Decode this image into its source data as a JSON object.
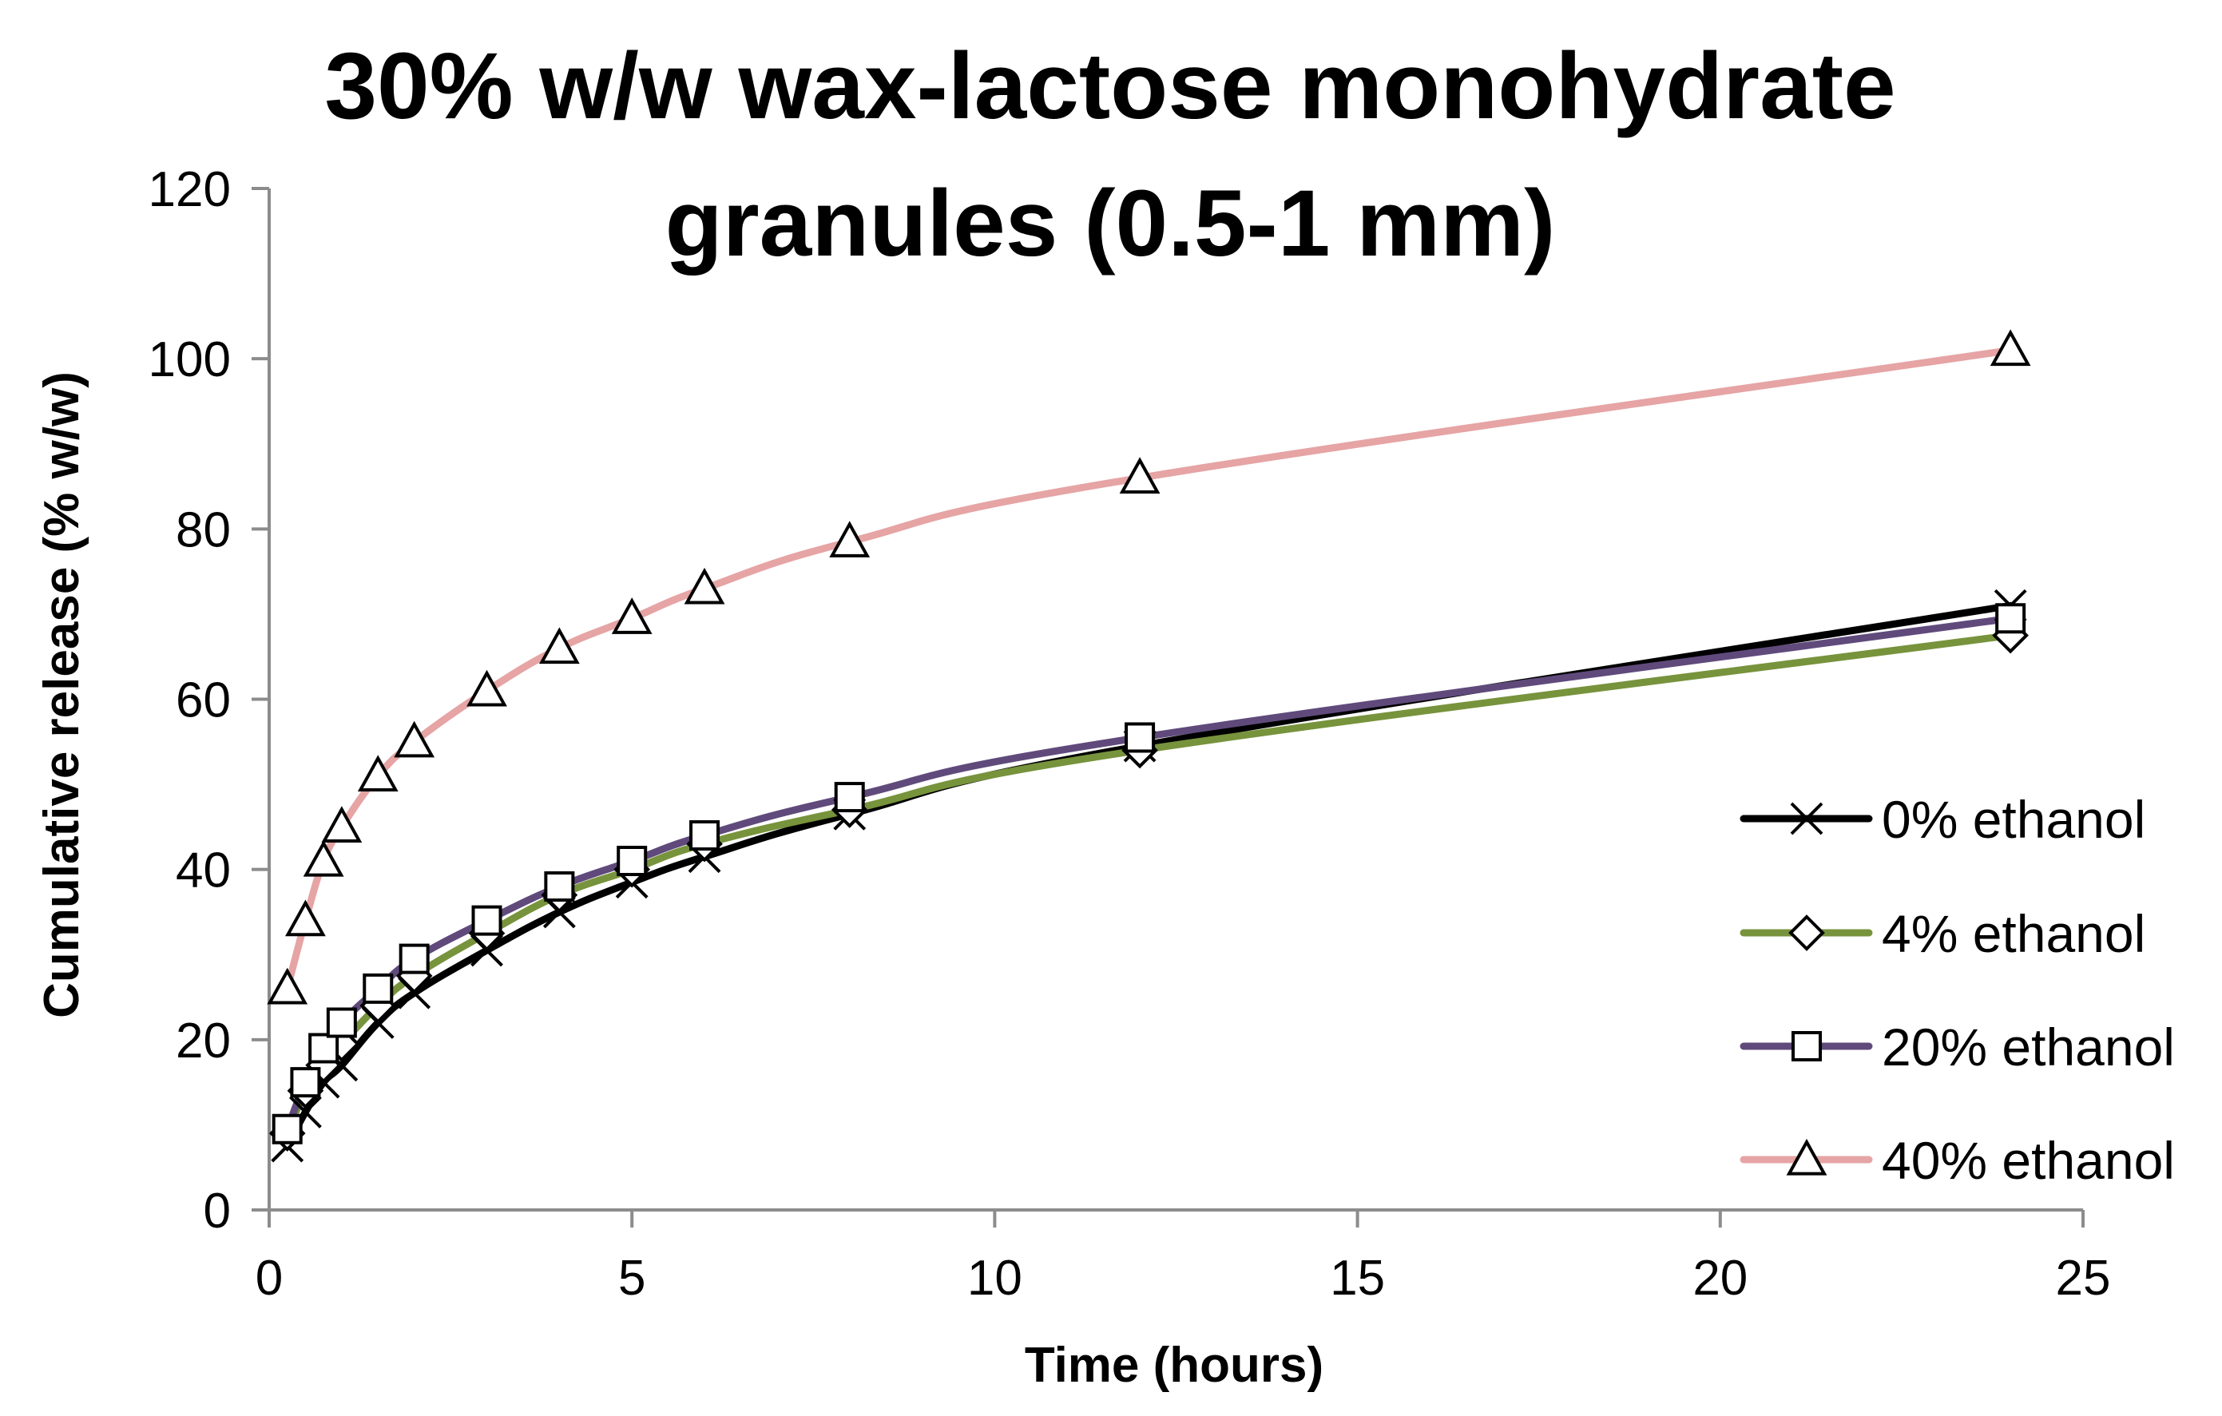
{
  "chart_data": {
    "type": "line",
    "title_lines": [
      "30% w/w wax-lactose monohydrate",
      "granules (0.5-1 mm)"
    ],
    "xlabel": "Time (hours)",
    "ylabel": "Cumulative release (% w/w)",
    "xlim": [
      0,
      25
    ],
    "ylim": [
      0,
      120
    ],
    "xticks": [
      0,
      5,
      10,
      15,
      20,
      25
    ],
    "yticks": [
      0,
      20,
      40,
      60,
      80,
      100,
      120
    ],
    "grid": false,
    "legend_position": "right",
    "series": [
      {
        "name": "0% ethanol",
        "color": "#000000",
        "marker": "x",
        "x": [
          0.25,
          0.5,
          0.75,
          1,
          1.5,
          2,
          3,
          4,
          5,
          6,
          8,
          12,
          24
        ],
        "y": [
          7.5,
          11.5,
          15,
          17,
          22,
          25.5,
          30.5,
          35,
          38.5,
          41.5,
          46.5,
          54.5,
          71
        ]
      },
      {
        "name": "4% ethanol",
        "color": "#77933C",
        "marker": "diamond",
        "x": [
          0.25,
          0.5,
          0.75,
          1,
          1.5,
          2,
          3,
          4,
          5,
          6,
          8,
          12,
          24
        ],
        "y": [
          9,
          14,
          17,
          19.5,
          24,
          27.5,
          32.5,
          37,
          40,
          43,
          47,
          54,
          67.5
        ]
      },
      {
        "name": "20% ethanol",
        "color": "#604A7B",
        "marker": "square",
        "x": [
          0.25,
          0.5,
          0.75,
          1,
          1.5,
          2,
          3,
          4,
          5,
          6,
          8,
          12,
          24
        ],
        "y": [
          9.5,
          15,
          19,
          22,
          26,
          29.5,
          34,
          38,
          41,
          44,
          48.5,
          55.5,
          69.5
        ]
      },
      {
        "name": "40% ethanol",
        "color": "#E6A4A4",
        "marker": "triangle",
        "x": [
          0.25,
          0.5,
          0.75,
          1,
          1.5,
          2,
          3,
          4,
          5,
          6,
          8,
          12,
          24
        ],
        "y": [
          26,
          34,
          41,
          45,
          51,
          55,
          61,
          66,
          69.5,
          73,
          78.5,
          86,
          101
        ]
      }
    ]
  }
}
